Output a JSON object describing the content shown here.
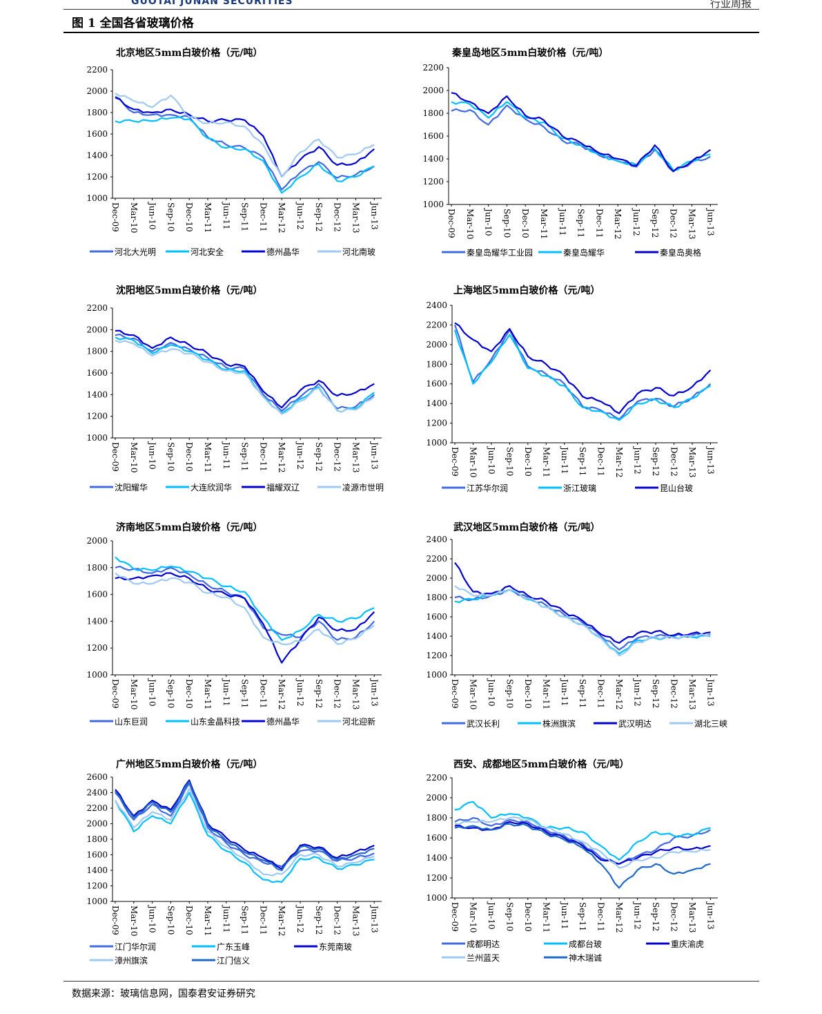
{
  "header": {
    "logo": "GUOTAI JUNAN SECURITIES",
    "right": "行业周报"
  },
  "figure_title": "图 1 全国各省玻璃价格",
  "source": "数据来源：玻璃信息网，国泰君安证券研究",
  "palette": [
    "#4169e1",
    "#00bfff",
    "#0000cd",
    "#9ec9f2",
    "#1e69c8"
  ],
  "chart_data": [
    {
      "type": "line",
      "title": "北京地区5mm白玻价格（元/吨）",
      "x": [
        "Dec-09",
        "Mar-10",
        "Jun-10",
        "Sep-10",
        "Dec-10",
        "Mar-11",
        "Jun-11",
        "Sep-11",
        "Dec-11",
        "Mar-12",
        "Jun-12",
        "Sep-12",
        "Dec-12",
        "Mar-13",
        "Jun-13"
      ],
      "ylim": [
        1000,
        2200
      ],
      "yticks": [
        1000,
        1200,
        1400,
        1600,
        1800,
        2000,
        2200
      ],
      "series": [
        {
          "name": "河北大光明",
          "values": [
            1950,
            1800,
            1780,
            1780,
            1760,
            1570,
            1500,
            1470,
            1380,
            1080,
            1240,
            1340,
            1190,
            1220,
            1300
          ]
        },
        {
          "name": "河北安全",
          "values": [
            1720,
            1720,
            1720,
            1750,
            1740,
            1560,
            1470,
            1460,
            1350,
            1050,
            1200,
            1320,
            1160,
            1200,
            1300
          ]
        },
        {
          "name": "德州晶华",
          "values": [
            1940,
            1830,
            1800,
            1830,
            1780,
            1720,
            1730,
            1730,
            1580,
            1200,
            1360,
            1480,
            1310,
            1330,
            1460
          ]
        },
        {
          "name": "河北南玻",
          "values": [
            1980,
            1910,
            1850,
            1960,
            1760,
            1700,
            1710,
            1670,
            1500,
            1200,
            1430,
            1550,
            1380,
            1410,
            1500
          ]
        }
      ]
    },
    {
      "type": "line",
      "title": "秦皇岛地区5mm白玻价格（元/吨）",
      "x": [
        "Dec-09",
        "Mar-10",
        "Jun-10",
        "Sep-10",
        "Dec-10",
        "Mar-11",
        "Jun-11",
        "Sep-11",
        "Dec-11",
        "Mar-12",
        "Jun-12",
        "Sep-12",
        "Dec-12",
        "Mar-13",
        "Jun-13"
      ],
      "ylim": [
        1000,
        2200
      ],
      "yticks": [
        1000,
        1200,
        1400,
        1600,
        1800,
        2000,
        2200
      ],
      "series": [
        {
          "name": "秦皇岛耀华工业园",
          "values": [
            1820,
            1830,
            1700,
            1870,
            1750,
            1680,
            1560,
            1520,
            1430,
            1380,
            1330,
            1480,
            1290,
            1370,
            1420
          ]
        },
        {
          "name": "秦皇岛耀华",
          "values": [
            1900,
            1880,
            1760,
            1900,
            1760,
            1720,
            1580,
            1520,
            1440,
            1380,
            1350,
            1490,
            1300,
            1380,
            1440
          ]
        },
        {
          "name": "秦皇岛奥格",
          "values": [
            1980,
            1900,
            1800,
            1950,
            1780,
            1740,
            1600,
            1540,
            1450,
            1400,
            1340,
            1520,
            1290,
            1380,
            1480
          ]
        }
      ]
    },
    {
      "type": "line",
      "title": "沈阳地区5mm白玻价格（元/吨）",
      "x": [
        "Dec-09",
        "Mar-10",
        "Jun-10",
        "Sep-10",
        "Dec-10",
        "Mar-11",
        "Jun-11",
        "Sep-11",
        "Dec-11",
        "Mar-12",
        "Jun-12",
        "Sep-12",
        "Dec-12",
        "Mar-13",
        "Jun-13"
      ],
      "ylim": [
        1000,
        2200
      ],
      "yticks": [
        1000,
        1200,
        1400,
        1600,
        1800,
        2000,
        2200
      ],
      "series": [
        {
          "name": "沈阳耀华",
          "values": [
            1950,
            1920,
            1800,
            1880,
            1820,
            1740,
            1650,
            1640,
            1400,
            1250,
            1380,
            1500,
            1270,
            1290,
            1400
          ]
        },
        {
          "name": "大连欣润华",
          "values": [
            1930,
            1900,
            1780,
            1860,
            1800,
            1720,
            1630,
            1620,
            1380,
            1230,
            1360,
            1470,
            1250,
            1270,
            1420
          ]
        },
        {
          "name": "福耀双辽",
          "values": [
            1990,
            1950,
            1830,
            1930,
            1860,
            1780,
            1680,
            1660,
            1430,
            1280,
            1440,
            1530,
            1390,
            1420,
            1500
          ]
        },
        {
          "name": "凌源市世明",
          "values": [
            1900,
            1870,
            1760,
            1820,
            1780,
            1700,
            1620,
            1600,
            1380,
            1220,
            1340,
            1460,
            1250,
            1260,
            1380
          ]
        }
      ]
    },
    {
      "type": "line",
      "title": "上海地区5mm白玻价格（元/吨）",
      "x": [
        "Dec-09",
        "Mar-10",
        "Jun-10",
        "Sep-10",
        "Dec-10",
        "Mar-11",
        "Jun-11",
        "Sep-11",
        "Dec-11",
        "Mar-12",
        "Jun-12",
        "Sep-12",
        "Dec-12",
        "Mar-13",
        "Jun-13"
      ],
      "ylim": [
        1000,
        2400
      ],
      "yticks": [
        1000,
        1200,
        1400,
        1600,
        1800,
        2000,
        2200,
        2400
      ],
      "series": [
        {
          "name": "江苏华尔润",
          "values": [
            2200,
            1620,
            1850,
            2150,
            1780,
            1700,
            1600,
            1370,
            1330,
            1240,
            1420,
            1450,
            1370,
            1460,
            1600
          ]
        },
        {
          "name": "浙江玻璃",
          "values": [
            2150,
            1600,
            1820,
            2100,
            1760,
            1680,
            1580,
            1360,
            1320,
            1230,
            1400,
            1440,
            1360,
            1450,
            1580
          ]
        },
        {
          "name": "昆山台玻",
          "values": [
            2220,
            2050,
            1930,
            2160,
            1880,
            1800,
            1680,
            1470,
            1420,
            1300,
            1500,
            1560,
            1480,
            1570,
            1740
          ]
        }
      ]
    },
    {
      "type": "line",
      "title": "济南地区5mm白玻价格（元/吨）",
      "x": [
        "Dec-09",
        "Mar-10",
        "Jun-10",
        "Sep-10",
        "Dec-10",
        "Mar-11",
        "Jun-11",
        "Sep-11",
        "Dec-11",
        "Mar-12",
        "Jun-12",
        "Sep-12",
        "Dec-12",
        "Mar-13",
        "Jun-13"
      ],
      "ylim": [
        1000,
        2000
      ],
      "yticks": [
        1000,
        1200,
        1400,
        1600,
        1800,
        2000
      ],
      "series": [
        {
          "name": "山东巨润",
          "values": [
            1800,
            1790,
            1760,
            1800,
            1750,
            1670,
            1620,
            1570,
            1350,
            1300,
            1280,
            1400,
            1260,
            1280,
            1400
          ]
        },
        {
          "name": "山东金晶科技",
          "values": [
            1880,
            1790,
            1780,
            1810,
            1770,
            1720,
            1660,
            1620,
            1430,
            1260,
            1330,
            1450,
            1400,
            1420,
            1500
          ]
        },
        {
          "name": "德州晶华",
          "values": [
            1720,
            1720,
            1740,
            1760,
            1720,
            1640,
            1600,
            1570,
            1380,
            1090,
            1260,
            1430,
            1330,
            1340,
            1470
          ]
        },
        {
          "name": "河北迎新",
          "values": [
            1760,
            1680,
            1680,
            1720,
            1690,
            1610,
            1580,
            1500,
            1280,
            1230,
            1250,
            1340,
            1230,
            1270,
            1370
          ]
        }
      ]
    },
    {
      "type": "line",
      "title": "武汉地区5mm白玻价格（元/吨）",
      "x": [
        "Dec-09",
        "Mar-10",
        "Jun-10",
        "Sep-10",
        "Dec-10",
        "Mar-11",
        "Jun-11",
        "Sep-11",
        "Dec-11",
        "Mar-12",
        "Jun-12",
        "Sep-12",
        "Dec-12",
        "Mar-13",
        "Jun-13"
      ],
      "ylim": [
        1000,
        2400
      ],
      "yticks": [
        1000,
        1200,
        1400,
        1600,
        1800,
        2000,
        2200,
        2400
      ],
      "series": [
        {
          "name": "武汉长利",
          "values": [
            1800,
            1780,
            1820,
            1880,
            1800,
            1720,
            1620,
            1540,
            1400,
            1260,
            1380,
            1400,
            1400,
            1410,
            1420
          ]
        },
        {
          "name": "株洲旗滨",
          "values": [
            1760,
            1780,
            1820,
            1880,
            1780,
            1700,
            1600,
            1520,
            1380,
            1220,
            1360,
            1380,
            1390,
            1390,
            1400
          ]
        },
        {
          "name": "武汉明达",
          "values": [
            2160,
            1860,
            1840,
            1920,
            1820,
            1760,
            1650,
            1560,
            1420,
            1330,
            1430,
            1450,
            1410,
            1430,
            1440
          ]
        },
        {
          "name": "湖北三峡",
          "values": [
            1920,
            1820,
            1820,
            1880,
            1790,
            1700,
            1600,
            1520,
            1380,
            1200,
            1340,
            1390,
            1380,
            1400,
            1410
          ]
        }
      ]
    },
    {
      "type": "line",
      "title": "广州地区5mm白玻价格（元/吨）",
      "x": [
        "Dec-09",
        "Mar-10",
        "Jun-10",
        "Sep-10",
        "Dec-10",
        "Mar-11",
        "Jun-11",
        "Sep-11",
        "Dec-11",
        "Mar-12",
        "Jun-12",
        "Sep-12",
        "Dec-12",
        "Mar-13",
        "Jun-13"
      ],
      "ylim": [
        1000,
        2600
      ],
      "yticks": [
        1000,
        1200,
        1400,
        1600,
        1800,
        2000,
        2200,
        2400,
        2600
      ],
      "series": [
        {
          "name": "江门华尔润",
          "values": [
            2400,
            2050,
            2250,
            2100,
            2520,
            1950,
            1750,
            1600,
            1500,
            1450,
            1650,
            1650,
            1520,
            1560,
            1620
          ]
        },
        {
          "name": "广东玉峰",
          "values": [
            2300,
            1900,
            2100,
            2000,
            2400,
            1850,
            1650,
            1500,
            1280,
            1250,
            1550,
            1560,
            1420,
            1470,
            1540
          ]
        },
        {
          "name": "东莞南玻",
          "values": [
            2440,
            2100,
            2300,
            2180,
            2560,
            2000,
            1820,
            1660,
            1560,
            1420,
            1720,
            1700,
            1560,
            1640,
            1720
          ]
        },
        {
          "name": "漳州旗滨",
          "values": [
            2300,
            1950,
            2150,
            2050,
            2450,
            1900,
            1700,
            1550,
            1350,
            1350,
            1600,
            1600,
            1450,
            1500,
            1580
          ]
        },
        {
          "name": "江门信义",
          "values": [
            2420,
            2080,
            2280,
            2150,
            2540,
            1980,
            1780,
            1630,
            1530,
            1400,
            1700,
            1680,
            1540,
            1600,
            1680
          ]
        }
      ]
    },
    {
      "type": "line",
      "title": "西安、成都地区5mm白玻价格（元/吨）",
      "x": [
        "Dec-09",
        "Mar-10",
        "Jun-10",
        "Sep-10",
        "Dec-10",
        "Mar-11",
        "Jun-11",
        "Sep-11",
        "Dec-11",
        "Mar-12",
        "Jun-12",
        "Sep-12",
        "Dec-12",
        "Mar-13",
        "Jun-13"
      ],
      "ylim": [
        1000,
        2200
      ],
      "yticks": [
        1000,
        1200,
        1400,
        1600,
        1800,
        2000,
        2200
      ],
      "series": [
        {
          "name": "成都明达",
          "values": [
            1760,
            1800,
            1720,
            1780,
            1760,
            1680,
            1620,
            1540,
            1400,
            1340,
            1420,
            1480,
            1600,
            1620,
            1680
          ]
        },
        {
          "name": "成都台玻",
          "values": [
            1880,
            1960,
            1800,
            1840,
            1800,
            1700,
            1700,
            1660,
            1520,
            1380,
            1560,
            1660,
            1620,
            1630,
            1700
          ]
        },
        {
          "name": "重庆渝虎",
          "values": [
            1720,
            1700,
            1680,
            1760,
            1740,
            1660,
            1600,
            1520,
            1380,
            1340,
            1400,
            1460,
            1500,
            1490,
            1520
          ]
        },
        {
          "name": "兰州蓝天",
          "values": [
            1740,
            1760,
            1760,
            1800,
            1780,
            1700,
            1640,
            1560,
            1460,
            1300,
            1380,
            1400,
            1460,
            1460,
            1480
          ]
        },
        {
          "name": "神木瑞诚",
          "values": [
            1700,
            1720,
            1680,
            1740,
            1720,
            1640,
            1580,
            1500,
            1340,
            1100,
            1280,
            1340,
            1240,
            1280,
            1340
          ]
        }
      ]
    }
  ]
}
